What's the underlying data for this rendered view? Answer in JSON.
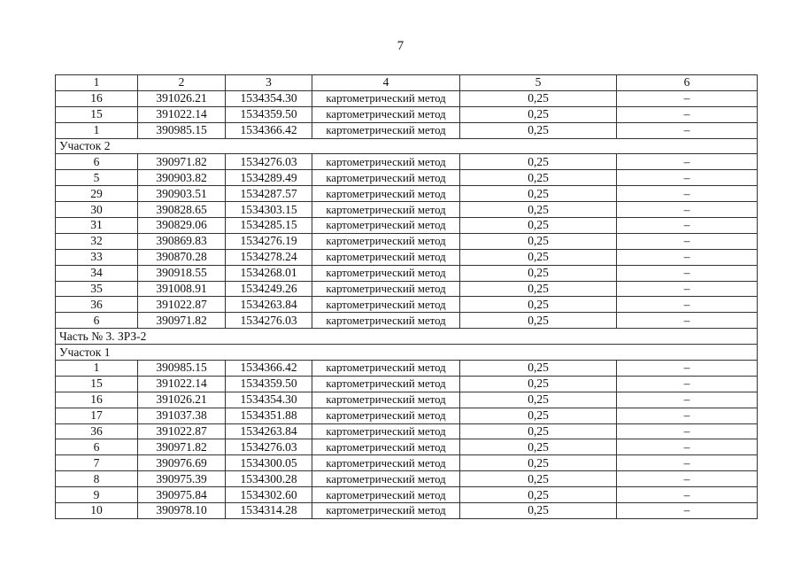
{
  "page_number": "7",
  "columns": [
    "1",
    "2",
    "3",
    "4",
    "5",
    "6"
  ],
  "rows": [
    {
      "type": "data",
      "cells": [
        "16",
        "391026.21",
        "1534354.30",
        "картометрический метод",
        "0,25",
        "–"
      ]
    },
    {
      "type": "data",
      "cells": [
        "15",
        "391022.14",
        "1534359.50",
        "картометрический метод",
        "0,25",
        "–"
      ]
    },
    {
      "type": "data",
      "cells": [
        "1",
        "390985.15",
        "1534366.42",
        "картометрический метод",
        "0,25",
        "–"
      ]
    },
    {
      "type": "section",
      "label": "Участок 2"
    },
    {
      "type": "data",
      "cells": [
        "6",
        "390971.82",
        "1534276.03",
        "картометрический метод",
        "0,25",
        "–"
      ]
    },
    {
      "type": "data",
      "cells": [
        "5",
        "390903.82",
        "1534289.49",
        "картометрический метод",
        "0,25",
        "–"
      ]
    },
    {
      "type": "data",
      "cells": [
        "29",
        "390903.51",
        "1534287.57",
        "картометрический метод",
        "0,25",
        "–"
      ]
    },
    {
      "type": "data",
      "cells": [
        "30",
        "390828.65",
        "1534303.15",
        "картометрический метод",
        "0,25",
        "–"
      ]
    },
    {
      "type": "data",
      "cells": [
        "31",
        "390829.06",
        "1534285.15",
        "картометрический метод",
        "0,25",
        "–"
      ]
    },
    {
      "type": "data",
      "cells": [
        "32",
        "390869.83",
        "1534276.19",
        "картометрический метод",
        "0,25",
        "–"
      ]
    },
    {
      "type": "data",
      "cells": [
        "33",
        "390870.28",
        "1534278.24",
        "картометрический метод",
        "0,25",
        "–"
      ]
    },
    {
      "type": "data",
      "cells": [
        "34",
        "390918.55",
        "1534268.01",
        "картометрический метод",
        "0,25",
        "–"
      ]
    },
    {
      "type": "data",
      "cells": [
        "35",
        "391008.91",
        "1534249.26",
        "картометрический метод",
        "0,25",
        "–"
      ]
    },
    {
      "type": "data",
      "cells": [
        "36",
        "391022.87",
        "1534263.84",
        "картометрический метод",
        "0,25",
        "–"
      ]
    },
    {
      "type": "data",
      "cells": [
        "6",
        "390971.82",
        "1534276.03",
        "картометрический метод",
        "0,25",
        "–"
      ]
    },
    {
      "type": "section",
      "label": "Часть № 3. ЗРЗ-2"
    },
    {
      "type": "section",
      "label": "Участок 1"
    },
    {
      "type": "data",
      "cells": [
        "1",
        "390985.15",
        "1534366.42",
        "картометрический метод",
        "0,25",
        "–"
      ]
    },
    {
      "type": "data",
      "cells": [
        "15",
        "391022.14",
        "1534359.50",
        "картометрический метод",
        "0,25",
        "–"
      ]
    },
    {
      "type": "data",
      "cells": [
        "16",
        "391026.21",
        "1534354.30",
        "картометрический метод",
        "0,25",
        "–"
      ]
    },
    {
      "type": "data",
      "cells": [
        "17",
        "391037.38",
        "1534351.88",
        "картометрический метод",
        "0,25",
        "–"
      ]
    },
    {
      "type": "data",
      "cells": [
        "36",
        "391022.87",
        "1534263.84",
        "картометрический метод",
        "0,25",
        "–"
      ]
    },
    {
      "type": "data",
      "cells": [
        "6",
        "390971.82",
        "1534276.03",
        "картометрический метод",
        "0,25",
        "–"
      ]
    },
    {
      "type": "data",
      "cells": [
        "7",
        "390976.69",
        "1534300.05",
        "картометрический метод",
        "0,25",
        "–"
      ]
    },
    {
      "type": "data",
      "cells": [
        "8",
        "390975.39",
        "1534300.28",
        "картометрический метод",
        "0,25",
        "–"
      ]
    },
    {
      "type": "data",
      "cells": [
        "9",
        "390975.84",
        "1534302.60",
        "картометрический метод",
        "0,25",
        "–"
      ]
    },
    {
      "type": "data",
      "cells": [
        "10",
        "390978.10",
        "1534314.28",
        "картометрический метод",
        "0,25",
        "–"
      ]
    }
  ]
}
